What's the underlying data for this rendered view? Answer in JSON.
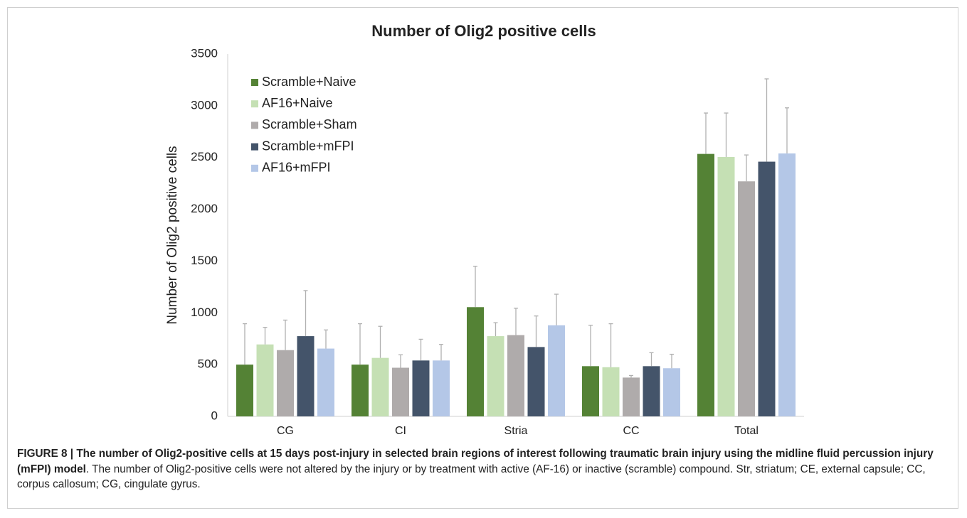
{
  "chart_data": {
    "type": "bar",
    "title": "Number of Olig2 positive cells",
    "y_label": "Number of Olig2 positive cells",
    "categories": [
      "CG",
      "CI",
      "Stria",
      "CC",
      "Total"
    ],
    "series": [
      {
        "name": "Scramble+Naive",
        "color": "#548235",
        "values": [
          500,
          500,
          1055,
          485,
          2535
        ],
        "errors": [
          395,
          395,
          395,
          395,
          395
        ]
      },
      {
        "name": "AF16+Naive",
        "color": "#c5e0b4",
        "values": [
          695,
          565,
          775,
          475,
          2505
        ],
        "errors": [
          165,
          305,
          130,
          420,
          425
        ]
      },
      {
        "name": "Scramble+Sham",
        "color": "#afabab",
        "values": [
          640,
          470,
          785,
          375,
          2270
        ],
        "errors": [
          290,
          125,
          260,
          20,
          255
        ]
      },
      {
        "name": "Scramble+mFPI",
        "color": "#44546a",
        "values": [
          775,
          540,
          670,
          485,
          2460
        ],
        "errors": [
          440,
          205,
          300,
          130,
          800
        ]
      },
      {
        "name": "AF16+mFPI",
        "color": "#b4c7e7",
        "values": [
          655,
          540,
          880,
          465,
          2540
        ],
        "errors": [
          180,
          155,
          300,
          135,
          440
        ]
      }
    ],
    "ylim": [
      0,
      3500
    ],
    "yticks": [
      0,
      500,
      1000,
      1500,
      2000,
      2500,
      3000,
      3500
    ],
    "grid": false,
    "legend": "upper left",
    "error_color": "#b0b0b0"
  },
  "caption": {
    "label": "FIGURE 8 |",
    "bold": "The number of Olig2-positive cells at 15 days post-injury in selected brain regions of interest following traumatic brain injury using the midline fluid percussion injury (mFPI) model",
    "text": ". The number of Olig2-positive cells were not altered by the injury or by treatment with active (AF-16) or inactive (scramble) compound. Str, striatum; CE, external capsule; CC, corpus callosum; CG, cingulate gyrus."
  }
}
